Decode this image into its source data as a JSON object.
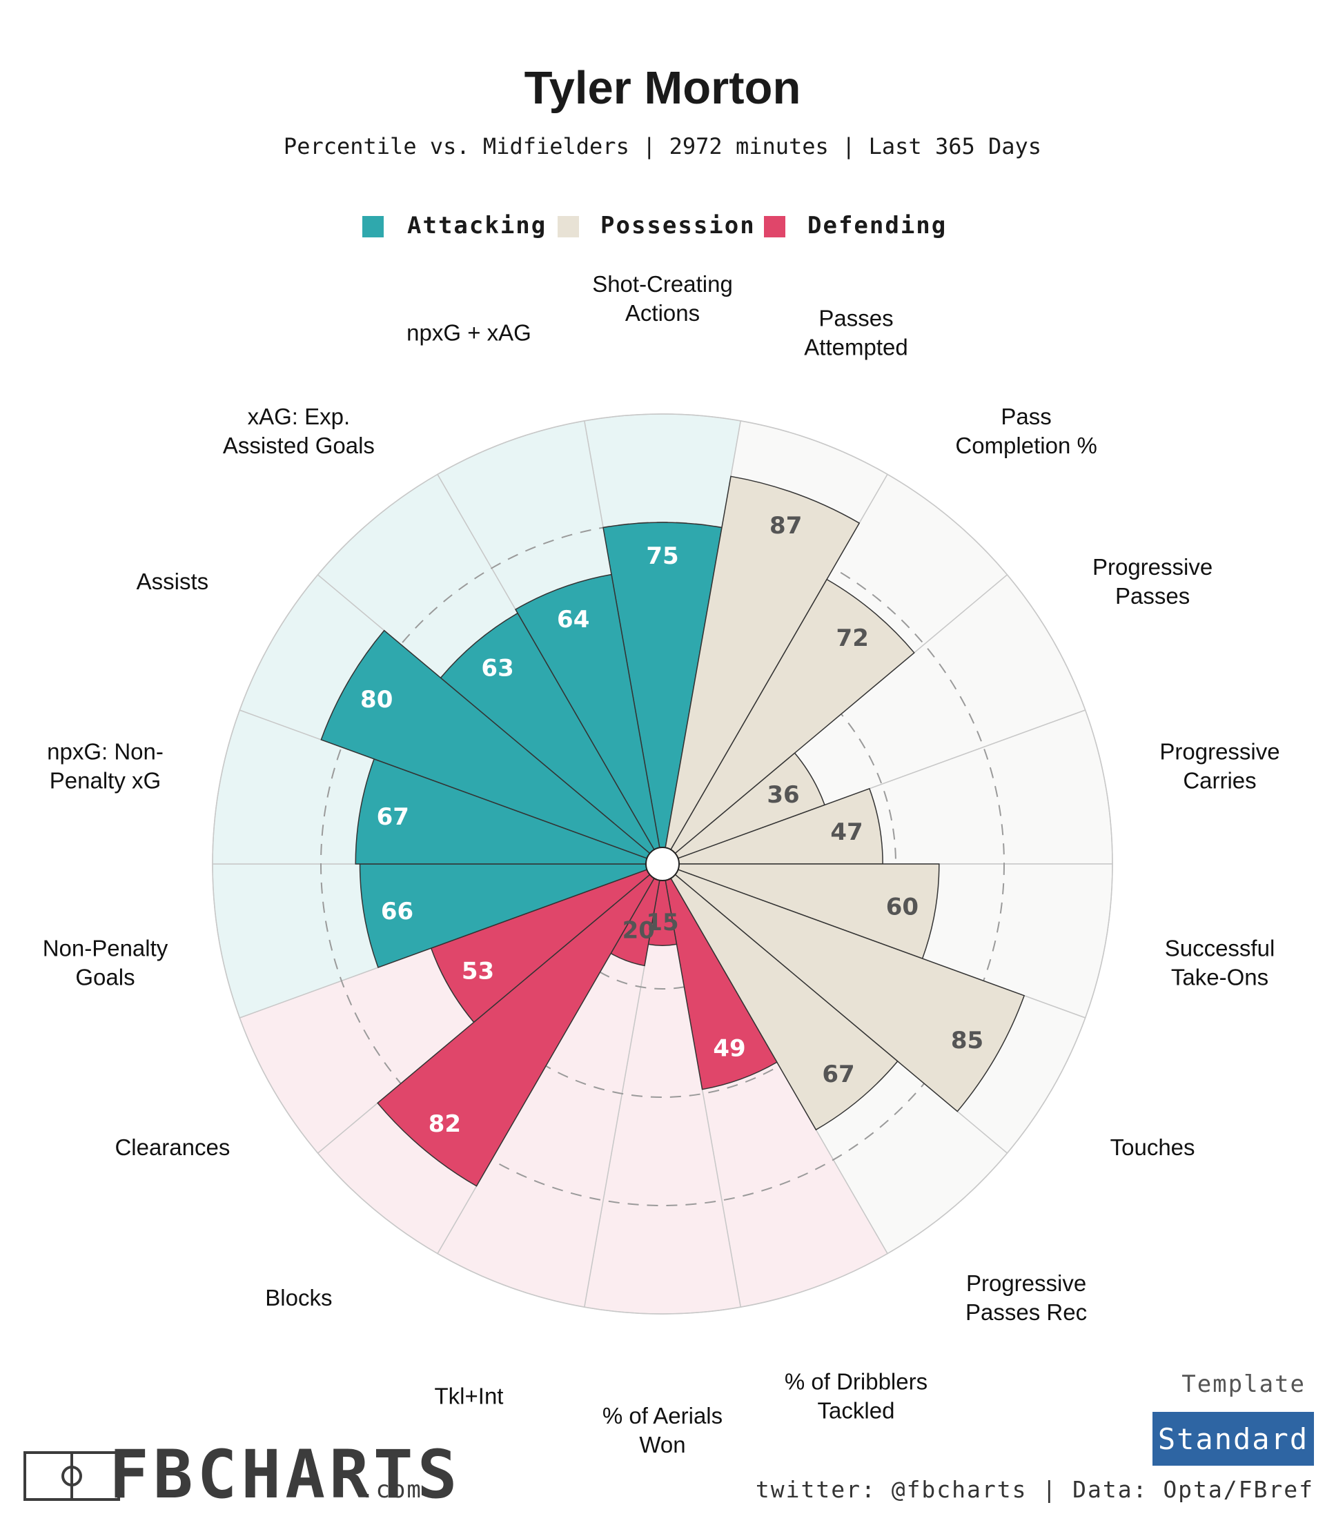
{
  "header": {
    "title": "Tyler Morton",
    "subtitle": "Percentile vs. Midfielders | 2972 minutes | Last 365 Days"
  },
  "legend": [
    {
      "label": "Attacking",
      "color": "#2fa8ad"
    },
    {
      "label": "Possession",
      "color": "#e8e2d5"
    },
    {
      "label": "Defending",
      "color": "#e0466a"
    }
  ],
  "chart_data": {
    "type": "polar-bar",
    "scale": [
      0,
      100
    ],
    "grid_rings": [
      25,
      50,
      75
    ],
    "categories": [
      {
        "label": "Shot-Creating Actions",
        "value": 75,
        "group": "Attacking"
      },
      {
        "label": "Passes Attempted",
        "value": 87,
        "group": "Possession"
      },
      {
        "label": "Pass Completion %",
        "value": 72,
        "group": "Possession"
      },
      {
        "label": "Progressive Passes",
        "value": 36,
        "group": "Possession"
      },
      {
        "label": "Progressive Carries",
        "value": 47,
        "group": "Possession"
      },
      {
        "label": "Successful Take-Ons",
        "value": 60,
        "group": "Possession"
      },
      {
        "label": "Touches",
        "value": 85,
        "group": "Possession"
      },
      {
        "label": "Progressive Passes Rec",
        "value": 67,
        "group": "Possession"
      },
      {
        "label": "% of Dribblers Tackled",
        "value": 49,
        "group": "Defending"
      },
      {
        "label": "% of Aerials Won",
        "value": 15,
        "group": "Defending"
      },
      {
        "label": "Tkl+Int",
        "value": 20,
        "group": "Defending"
      },
      {
        "label": "Blocks",
        "value": 82,
        "group": "Defending"
      },
      {
        "label": "Clearances",
        "value": 53,
        "group": "Defending"
      },
      {
        "label": "Non-Penalty Goals",
        "value": 66,
        "group": "Attacking"
      },
      {
        "label": "npxG: Non-Penalty xG",
        "value": 67,
        "group": "Attacking"
      },
      {
        "label": "Assists",
        "value": 80,
        "group": "Attacking"
      },
      {
        "label": "xAG: Exp. Assisted Goals",
        "value": 63,
        "group": "Attacking"
      },
      {
        "label": "npxG + xAG",
        "value": 64,
        "group": "Attacking"
      }
    ],
    "label_lines": [
      [
        "Shot-Creating",
        "Actions"
      ],
      [
        "Passes",
        "Attempted"
      ],
      [
        "Pass",
        "Completion %"
      ],
      [
        "Progressive",
        "Passes"
      ],
      [
        "Progressive",
        "Carries"
      ],
      [
        "Successful",
        "Take-Ons"
      ],
      [
        "Touches"
      ],
      [
        "Progressive",
        "Passes Rec"
      ],
      [
        "% of Dribblers",
        "Tackled"
      ],
      [
        "% of Aerials",
        "Won"
      ],
      [
        "Tkl+Int"
      ],
      [
        "Blocks"
      ],
      [
        "Clearances"
      ],
      [
        "Non-Penalty",
        "Goals"
      ],
      [
        "npxG: Non-",
        "Penalty xG"
      ],
      [
        "Assists"
      ],
      [
        "xAG: Exp.",
        "Assisted Goals"
      ],
      [
        "npxG + xAG"
      ]
    ],
    "group_styles": {
      "Attacking": {
        "bar": "#2fa8ad",
        "background": "#e8f5f5",
        "value_text": "#ffffff"
      },
      "Possession": {
        "bar": "#e8e2d5",
        "background": "#f9f9f8",
        "value_text": "#555555"
      },
      "Defending": {
        "bar": "#e0466a",
        "background": "#fbedf0",
        "value_text": "#ffffff"
      }
    },
    "value_text_overrides": {
      "% of Aerials Won": "#555555",
      "Tkl+Int": "#555555"
    }
  },
  "branding": {
    "logo": "FBCHARTS",
    "logo_suffix": ".com",
    "template_label": "Template",
    "template_value": "Standard",
    "template_color": "#2e65a3",
    "credit": "twitter: @fbcharts | Data: Opta/FBref"
  }
}
